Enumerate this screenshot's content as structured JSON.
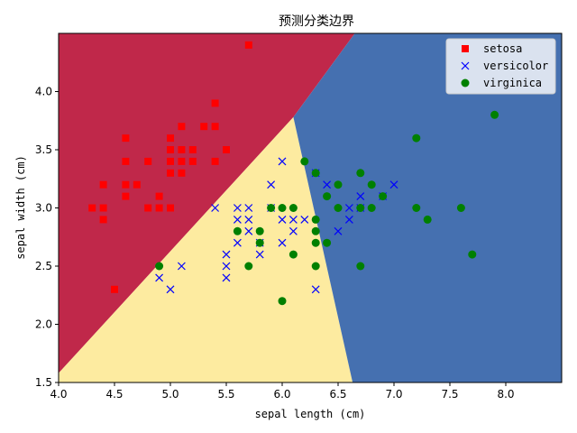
{
  "chart_data": {
    "type": "scatter",
    "title": "预测分类边界",
    "xlabel": "sepal length (cm)",
    "ylabel": "sepal width (cm)",
    "xlim": [
      4.0,
      8.5
    ],
    "ylim": [
      1.5,
      4.5
    ],
    "xticks": [
      4.0,
      4.5,
      5.0,
      5.5,
      6.0,
      6.5,
      7.0,
      7.5,
      8.0
    ],
    "yticks": [
      1.5,
      2.0,
      2.5,
      3.0,
      3.5,
      4.0
    ],
    "xtick_labels": [
      "4.0",
      "4.5",
      "5.0",
      "5.5",
      "6.0",
      "6.5",
      "7.0",
      "7.5",
      "8.0"
    ],
    "ytick_labels": [
      "1.5",
      "2.0",
      "2.5",
      "3.0",
      "3.5",
      "4.0"
    ],
    "grid": false,
    "legend_position": "top-right",
    "regions": [
      {
        "class": "setosa",
        "color": "#c0284a",
        "polygon": [
          [
            4.0,
            1.58
          ],
          [
            6.1,
            3.78
          ],
          [
            6.65,
            4.5
          ],
          [
            4.0,
            4.5
          ]
        ]
      },
      {
        "class": "versicolor",
        "color": "#fdeba0",
        "polygon": [
          [
            4.0,
            1.5
          ],
          [
            4.0,
            1.58
          ],
          [
            6.1,
            3.78
          ],
          [
            6.63,
            1.5
          ]
        ]
      },
      {
        "class": "virginica",
        "color": "#4570b0",
        "polygon": [
          [
            6.63,
            1.5
          ],
          [
            6.1,
            3.78
          ],
          [
            6.65,
            4.5
          ],
          [
            8.5,
            4.5
          ],
          [
            8.5,
            1.5
          ]
        ]
      }
    ],
    "series": [
      {
        "name": "setosa",
        "marker": "square",
        "color": "#ff0000",
        "points": [
          [
            4.3,
            3.0
          ],
          [
            4.4,
            2.9
          ],
          [
            4.4,
            3.0
          ],
          [
            4.4,
            3.2
          ],
          [
            4.5,
            2.3
          ],
          [
            4.6,
            3.1
          ],
          [
            4.6,
            3.2
          ],
          [
            4.6,
            3.4
          ],
          [
            4.6,
            3.6
          ],
          [
            4.7,
            3.2
          ],
          [
            4.8,
            3.0
          ],
          [
            4.8,
            3.4
          ],
          [
            4.9,
            3.0
          ],
          [
            4.9,
            3.1
          ],
          [
            5.0,
            3.0
          ],
          [
            5.0,
            3.3
          ],
          [
            5.0,
            3.4
          ],
          [
            5.0,
            3.5
          ],
          [
            5.0,
            3.6
          ],
          [
            5.1,
            3.3
          ],
          [
            5.1,
            3.4
          ],
          [
            5.1,
            3.5
          ],
          [
            5.1,
            3.7
          ],
          [
            5.2,
            3.4
          ],
          [
            5.2,
            3.5
          ],
          [
            5.3,
            3.7
          ],
          [
            5.4,
            3.4
          ],
          [
            5.4,
            3.7
          ],
          [
            5.4,
            3.9
          ],
          [
            5.5,
            3.5
          ],
          [
            5.7,
            4.4
          ]
        ]
      },
      {
        "name": "versicolor",
        "marker": "x",
        "color": "#0000ff",
        "points": [
          [
            4.9,
            2.4
          ],
          [
            5.0,
            2.3
          ],
          [
            5.1,
            2.5
          ],
          [
            5.4,
            3.0
          ],
          [
            5.5,
            2.4
          ],
          [
            5.5,
            2.5
          ],
          [
            5.5,
            2.6
          ],
          [
            5.6,
            2.7
          ],
          [
            5.6,
            2.9
          ],
          [
            5.6,
            3.0
          ],
          [
            5.7,
            2.8
          ],
          [
            5.7,
            2.9
          ],
          [
            5.7,
            3.0
          ],
          [
            5.8,
            2.6
          ],
          [
            5.8,
            2.7
          ],
          [
            5.9,
            3.0
          ],
          [
            5.9,
            3.2
          ],
          [
            6.0,
            2.7
          ],
          [
            6.0,
            2.9
          ],
          [
            6.0,
            3.4
          ],
          [
            6.1,
            2.8
          ],
          [
            6.1,
            2.9
          ],
          [
            6.2,
            2.9
          ],
          [
            6.3,
            2.3
          ],
          [
            6.3,
            3.3
          ],
          [
            6.4,
            3.2
          ],
          [
            6.5,
            2.8
          ],
          [
            6.6,
            2.9
          ],
          [
            6.6,
            3.0
          ],
          [
            6.7,
            3.0
          ],
          [
            6.7,
            3.1
          ],
          [
            6.9,
            3.1
          ],
          [
            7.0,
            3.2
          ]
        ]
      },
      {
        "name": "virginica",
        "marker": "circle",
        "color": "#008000",
        "points": [
          [
            4.9,
            2.5
          ],
          [
            5.6,
            2.8
          ],
          [
            5.7,
            2.5
          ],
          [
            5.8,
            2.7
          ],
          [
            5.8,
            2.8
          ],
          [
            5.9,
            3.0
          ],
          [
            6.0,
            2.2
          ],
          [
            6.0,
            3.0
          ],
          [
            6.1,
            2.6
          ],
          [
            6.1,
            3.0
          ],
          [
            6.2,
            3.4
          ],
          [
            6.3,
            2.5
          ],
          [
            6.3,
            2.7
          ],
          [
            6.3,
            2.8
          ],
          [
            6.3,
            2.9
          ],
          [
            6.3,
            3.3
          ],
          [
            6.4,
            2.7
          ],
          [
            6.4,
            3.1
          ],
          [
            6.5,
            3.0
          ],
          [
            6.5,
            3.2
          ],
          [
            6.7,
            2.5
          ],
          [
            6.7,
            3.0
          ],
          [
            6.7,
            3.3
          ],
          [
            6.8,
            3.0
          ],
          [
            6.8,
            3.2
          ],
          [
            6.9,
            3.1
          ],
          [
            7.2,
            3.0
          ],
          [
            7.2,
            3.6
          ],
          [
            7.3,
            2.9
          ],
          [
            7.6,
            3.0
          ],
          [
            7.7,
            2.6
          ],
          [
            7.9,
            3.8
          ]
        ]
      }
    ]
  }
}
